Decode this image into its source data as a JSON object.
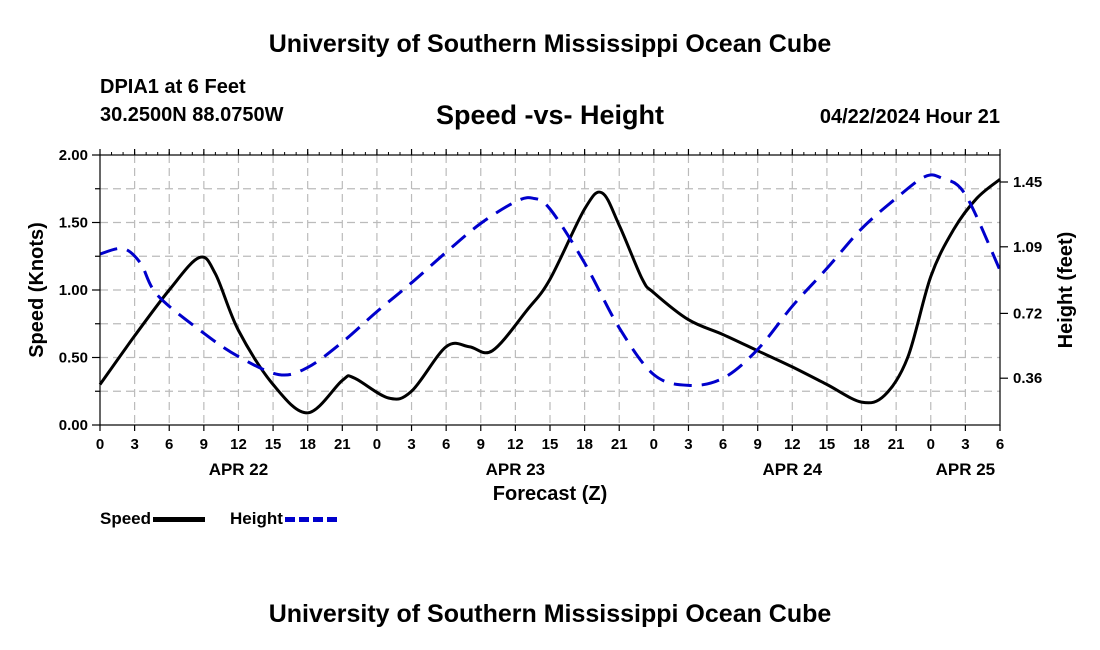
{
  "header": {
    "top_title": "University of Southern Mississippi Ocean Cube",
    "bottom_title": "University of Southern Mississippi Ocean Cube",
    "station": "DPIA1 at 6 Feet",
    "coordinates": "30.2500N  88.0750W",
    "timestamp": "04/22/2024 Hour 21"
  },
  "colors": {
    "speed": "#000000",
    "height": "#0000cc",
    "grid": "#bbbbbb"
  },
  "chart_data": {
    "type": "line",
    "title": "Speed -vs- Height",
    "xlabel": "Forecast (Z)",
    "ylabel": "Speed (Knots)",
    "y2label": "Height (feet)",
    "x_unit": "hours from APR 22 00Z",
    "xlim": [
      0,
      78
    ],
    "ylim": [
      0,
      2.0
    ],
    "y2lim": [
      0.1,
      1.6
    ],
    "x_ticks": [
      0,
      3,
      6,
      9,
      12,
      15,
      18,
      21,
      24,
      27,
      30,
      33,
      36,
      39,
      42,
      45,
      48,
      51,
      54,
      57,
      60,
      63,
      66,
      69,
      72,
      75,
      78
    ],
    "x_tick_labels": [
      "0",
      "3",
      "6",
      "9",
      "12",
      "15",
      "18",
      "21",
      "0",
      "3",
      "6",
      "9",
      "12",
      "15",
      "18",
      "21",
      "0",
      "3",
      "6",
      "9",
      "12",
      "15",
      "18",
      "21",
      "0",
      "3",
      "6"
    ],
    "y_ticks": [
      0.0,
      0.5,
      1.0,
      1.5,
      2.0
    ],
    "y_tick_labels": [
      "0.00",
      "0.50",
      "1.00",
      "1.50",
      "2.00"
    ],
    "y2_ticks": [
      0.36,
      0.72,
      1.09,
      1.45
    ],
    "y2_tick_labels": [
      "0.36",
      "0.72",
      "1.09",
      "1.45"
    ],
    "date_labels": [
      {
        "label": "APR 22",
        "x": 12
      },
      {
        "label": "APR 23",
        "x": 36
      },
      {
        "label": "APR 24",
        "x": 60
      },
      {
        "label": "APR 25",
        "x": 75
      }
    ],
    "grid": true,
    "series": [
      {
        "name": "Speed",
        "axis": "left",
        "style": "solid",
        "points": [
          [
            0,
            0.3
          ],
          [
            3,
            0.66
          ],
          [
            6,
            1.0
          ],
          [
            8.6,
            1.24
          ],
          [
            10,
            1.12
          ],
          [
            12,
            0.7
          ],
          [
            15,
            0.3
          ],
          [
            18,
            0.09
          ],
          [
            21,
            0.33
          ],
          [
            22,
            0.35
          ],
          [
            25,
            0.2
          ],
          [
            27,
            0.25
          ],
          [
            30,
            0.58
          ],
          [
            32,
            0.58
          ],
          [
            34,
            0.55
          ],
          [
            37,
            0.85
          ],
          [
            39,
            1.08
          ],
          [
            42,
            1.6
          ],
          [
            43.5,
            1.72
          ],
          [
            45,
            1.48
          ],
          [
            47,
            1.08
          ],
          [
            48,
            0.98
          ],
          [
            51,
            0.78
          ],
          [
            54,
            0.67
          ],
          [
            57,
            0.55
          ],
          [
            60,
            0.43
          ],
          [
            63,
            0.3
          ],
          [
            66,
            0.17
          ],
          [
            68,
            0.22
          ],
          [
            70,
            0.5
          ],
          [
            72,
            1.1
          ],
          [
            74,
            1.45
          ],
          [
            76,
            1.68
          ],
          [
            78,
            1.82
          ]
        ]
      },
      {
        "name": "Height",
        "axis": "right",
        "style": "dashed",
        "points": [
          [
            0,
            1.05
          ],
          [
            2,
            1.08
          ],
          [
            3.5,
            1.0
          ],
          [
            5,
            0.82
          ],
          [
            9,
            0.61
          ],
          [
            12,
            0.48
          ],
          [
            15.5,
            0.38
          ],
          [
            18,
            0.42
          ],
          [
            21,
            0.56
          ],
          [
            24,
            0.73
          ],
          [
            27,
            0.89
          ],
          [
            30,
            1.06
          ],
          [
            33,
            1.22
          ],
          [
            36,
            1.34
          ],
          [
            37.5,
            1.36
          ],
          [
            39,
            1.3
          ],
          [
            42,
            1.0
          ],
          [
            45,
            0.64
          ],
          [
            48,
            0.38
          ],
          [
            51,
            0.32
          ],
          [
            54,
            0.36
          ],
          [
            57,
            0.52
          ],
          [
            60,
            0.76
          ],
          [
            63,
            0.97
          ],
          [
            66,
            1.19
          ],
          [
            69,
            1.36
          ],
          [
            71.5,
            1.48
          ],
          [
            73,
            1.47
          ],
          [
            75,
            1.38
          ],
          [
            78,
            0.96
          ]
        ]
      }
    ]
  }
}
